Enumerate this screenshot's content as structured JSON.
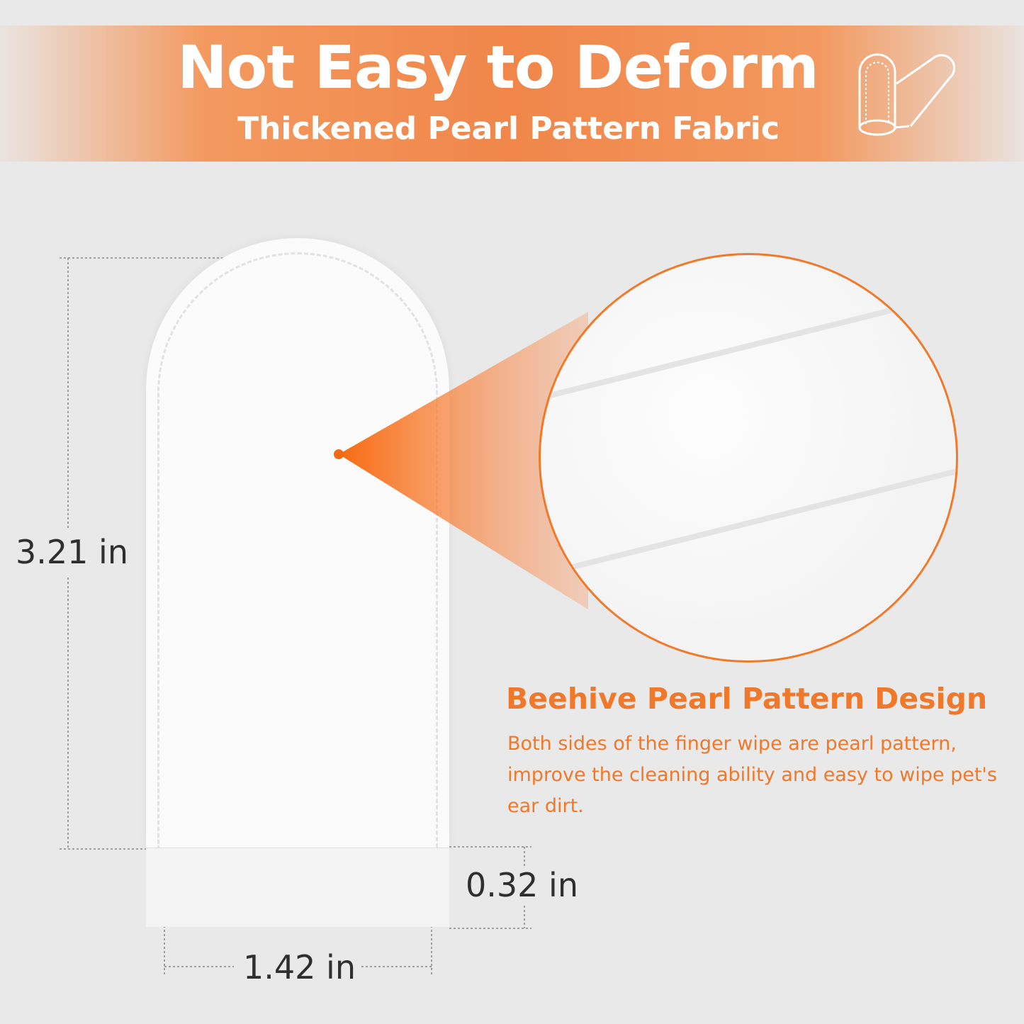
{
  "header": {
    "title": "Not Easy to Deform",
    "subtitle": "Thickened Pearl Pattern Fabric",
    "icon": "finger-wipe-icon"
  },
  "dimensions": {
    "height": "3.21 in",
    "cuff": "0.32 in",
    "width": "1.42 in"
  },
  "feature": {
    "title": "Beehive Pearl Pattern Design",
    "description": "Both sides of the finger wipe are pearl pattern, improve the cleaning ability and easy to wipe pet's ear dirt."
  },
  "colors": {
    "accent": "#f0782a",
    "background": "#e9e9e9"
  }
}
